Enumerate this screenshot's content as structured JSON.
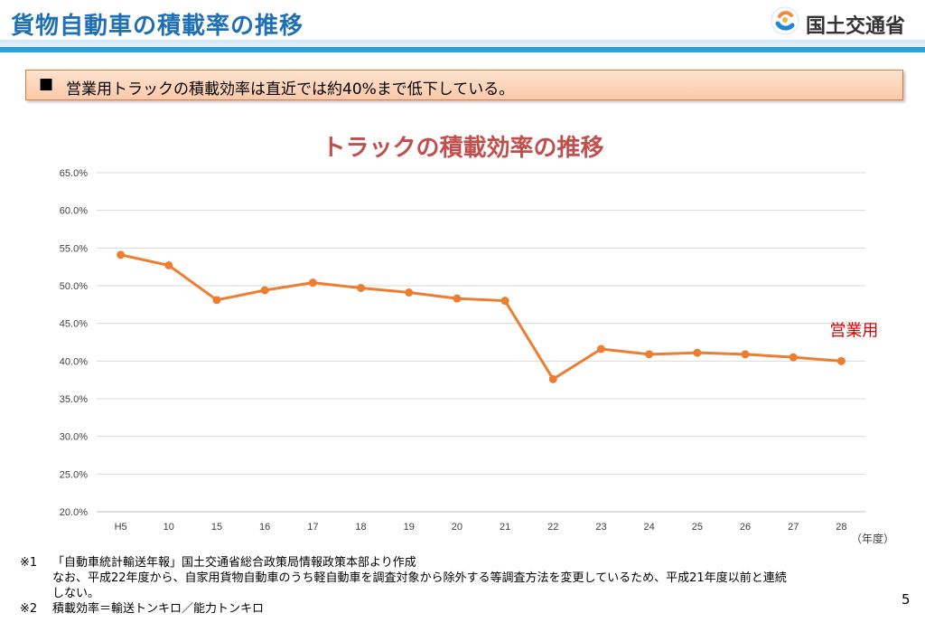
{
  "header": {
    "title": "貨物自動車の積載率の推移",
    "logo_text": "国土交通省"
  },
  "summary": {
    "bullet": "■",
    "text": "営業用トラックの積載効率は直近では約40%まで低下している。"
  },
  "chart_data": {
    "type": "line",
    "title": "トラックの積載効率の推移",
    "xlabel": "（年度）",
    "ylabel": "",
    "categories": [
      "H5",
      "10",
      "15",
      "16",
      "17",
      "18",
      "19",
      "20",
      "21",
      "22",
      "23",
      "24",
      "25",
      "26",
      "27",
      "28"
    ],
    "series": [
      {
        "name": "営業用",
        "values": [
          54.1,
          52.7,
          48.1,
          49.4,
          50.4,
          49.7,
          49.1,
          48.3,
          48.0,
          37.6,
          41.6,
          40.9,
          41.1,
          40.9,
          40.5,
          40.0
        ],
        "color": "#ed7d31"
      }
    ],
    "yticks": [
      "20.0%",
      "25.0%",
      "30.0%",
      "35.0%",
      "40.0%",
      "45.0%",
      "50.0%",
      "55.0%",
      "60.0%",
      "65.0%"
    ],
    "ylim": [
      20,
      65
    ],
    "grid": true,
    "legend": "right",
    "title_color": "#c0504d",
    "label_color": "#e00000"
  },
  "notes": [
    {
      "mark": "※1",
      "lines": [
        "「自動車統計輸送年報」国土交通省総合政策局情報政策本部より作成",
        "なお、平成22年度から、自家用貨物自動車のうち軽自動車を調査対象から除外する等調査方法を変更しているため、平成21年度以前と連続",
        "しない。"
      ]
    },
    {
      "mark": "※2",
      "lines": [
        "積載効率＝輸送トンキロ／能力トンキロ"
      ]
    }
  ],
  "page_number": "5"
}
